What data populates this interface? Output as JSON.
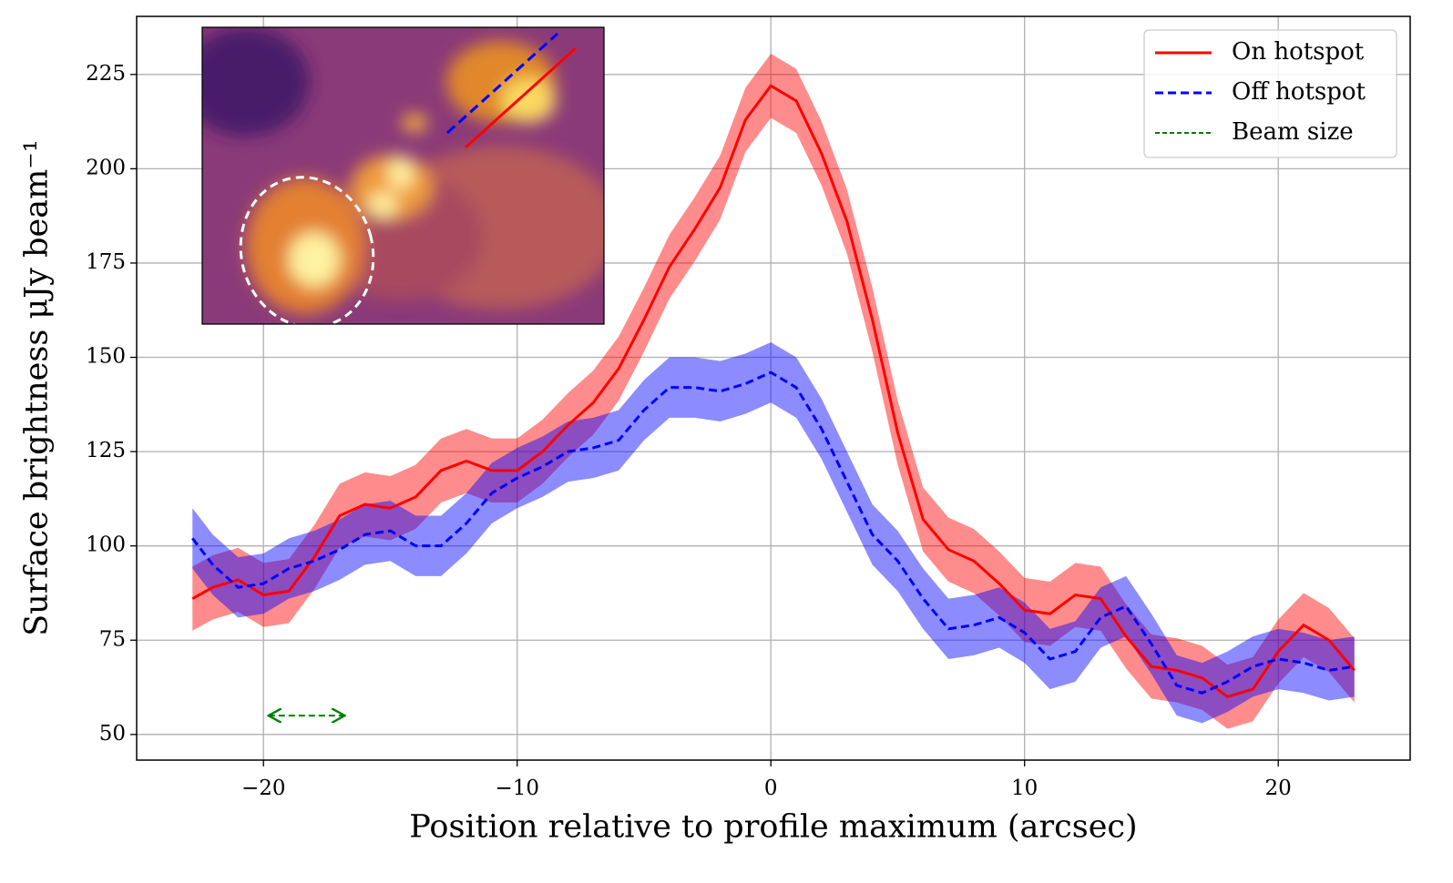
{
  "chart_data": {
    "type": "line",
    "xlabel": "Position relative to profile maximum (arcsec)",
    "ylabel": "Surface brightness μJy beam⁻¹",
    "xlim": [
      -25,
      25.2
    ],
    "ylim": [
      43.2,
      240.4
    ],
    "xticks": [
      {
        "value": -20,
        "label": "−20"
      },
      {
        "value": -10,
        "label": "−10"
      },
      0,
      10,
      20
    ],
    "yticks": [
      50,
      75,
      100,
      125,
      150,
      175,
      200,
      225
    ],
    "grid": true,
    "legend": "upper right",
    "series": [
      {
        "name": "On hotspot",
        "color": "#ff0000",
        "style": "solid",
        "error": 8.5,
        "x": [
          -22.8,
          -22,
          -21,
          -20,
          -19,
          -18,
          -17,
          -16,
          -15,
          -14,
          -13,
          -12,
          -11,
          -10,
          -9,
          -8,
          -7,
          -6,
          -5,
          -4,
          -3,
          -2,
          -1,
          0,
          1,
          2,
          3,
          4,
          5,
          6,
          7,
          8,
          9,
          10,
          11,
          12,
          13,
          14,
          15,
          16,
          17,
          18,
          19,
          20,
          21,
          22,
          23
        ],
        "values": [
          86,
          89,
          91,
          87,
          88,
          97,
          108,
          111,
          110,
          113,
          120,
          122.5,
          120,
          120,
          125,
          132,
          138,
          147,
          160,
          174,
          184,
          195,
          213,
          222,
          218,
          204,
          186,
          160,
          130,
          107,
          99,
          96,
          90,
          83,
          82,
          87,
          86,
          76,
          68,
          67,
          65,
          60,
          62,
          72,
          79,
          75,
          67
        ]
      },
      {
        "name": "Off hotspot",
        "color": "#0000ff",
        "style": "dashed",
        "error": 8,
        "x": [
          -22.8,
          -22,
          -21,
          -20,
          -19,
          -18,
          -17,
          -16,
          -15,
          -14,
          -13,
          -12,
          -11,
          -10,
          -9,
          -8,
          -7,
          -6,
          -5,
          -4,
          -3,
          -2,
          -1,
          0,
          1,
          2,
          3,
          4,
          5,
          6,
          7,
          8,
          9,
          10,
          11,
          12,
          13,
          14,
          15,
          16,
          17,
          18,
          19,
          20,
          21,
          22,
          23
        ],
        "values": [
          102,
          95,
          89,
          90,
          94,
          96,
          99,
          103,
          104,
          100,
          100,
          106,
          114,
          118,
          121,
          125,
          126,
          128,
          136,
          142,
          142,
          141,
          143,
          146,
          142,
          131,
          117,
          103,
          96,
          86,
          78,
          79,
          81,
          77,
          70,
          72,
          81,
          84,
          74,
          63,
          61,
          64,
          68,
          70,
          69,
          67,
          68
        ]
      },
      {
        "name": "Beam size",
        "color": "#008000",
        "style": "arrow",
        "x": [
          -19.8,
          -16.8
        ],
        "values": [
          55,
          55
        ]
      }
    ]
  }
}
